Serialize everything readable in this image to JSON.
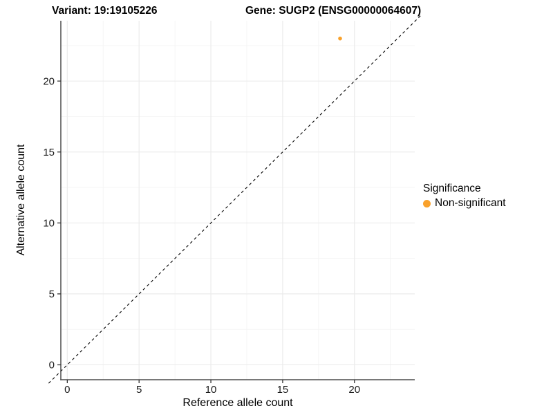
{
  "chart_data": {
    "type": "scatter",
    "titles": [
      "Variant: 19:19105226",
      "Gene: SUGP2 (ENSG00000064607)"
    ],
    "xlabel": "Reference allele count",
    "ylabel": "Alternative allele count",
    "xlim": [
      -0.45,
      24.2
    ],
    "ylim": [
      -1.05,
      24.25
    ],
    "x_ticks": [
      0,
      5,
      10,
      15,
      20
    ],
    "y_ticks": [
      0,
      5,
      10,
      15,
      20
    ],
    "x_minor_ticks": [
      2.5,
      7.5,
      12.5,
      17.5,
      22.5
    ],
    "y_minor_ticks": [
      2.5,
      7.5,
      12.5,
      17.5,
      22.5
    ],
    "grid": "major+minor",
    "series": [
      {
        "name": "Non-significant",
        "color": "#F9A12B",
        "points": [
          {
            "x": 19,
            "y": 23
          }
        ]
      }
    ],
    "reference_line": {
      "type": "identity",
      "slope": 1,
      "intercept": 0,
      "style": "dashed",
      "color": "#000000"
    },
    "legend": {
      "position": "right",
      "title": "Significance",
      "entries": [
        "Non-significant"
      ]
    }
  },
  "colors": {
    "background": "#FFFFFF",
    "grid_major": "#EBEBEB",
    "grid_minor": "#F4F4F4",
    "axis_line": "#4D4D4D",
    "tick_mark": "#333333",
    "tick_label": "#1A1A1A",
    "point": "#F9A12B"
  }
}
